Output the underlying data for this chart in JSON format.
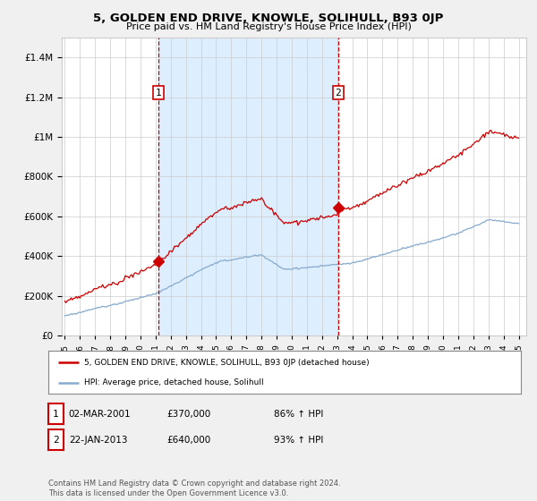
{
  "title": "5, GOLDEN END DRIVE, KNOWLE, SOLIHULL, B93 0JP",
  "subtitle": "Price paid vs. HM Land Registry's House Price Index (HPI)",
  "hpi_label": "HPI: Average price, detached house, Solihull",
  "price_label": "5, GOLDEN END DRIVE, KNOWLE, SOLIHULL, B93 0JP (detached house)",
  "legend_note": "Contains HM Land Registry data © Crown copyright and database right 2024.\nThis data is licensed under the Open Government Licence v3.0.",
  "transaction1": {
    "label": "1",
    "date": "02-MAR-2001",
    "price": "£370,000",
    "hpi": "86% ↑ HPI",
    "x": 2001.17
  },
  "transaction2": {
    "label": "2",
    "date": "22-JAN-2013",
    "price": "£640,000",
    "hpi": "93% ↑ HPI",
    "x": 2013.06
  },
  "ylim": [
    0,
    1500000
  ],
  "xlim_start": 1995.0,
  "xlim_end": 2025.5,
  "price_color": "#cc0000",
  "hpi_color": "#88aacc",
  "shade_color": "#ddeeff",
  "background_color": "#f0f0f0",
  "plot_bg": "#ffffff",
  "grid_color": "#cccccc"
}
